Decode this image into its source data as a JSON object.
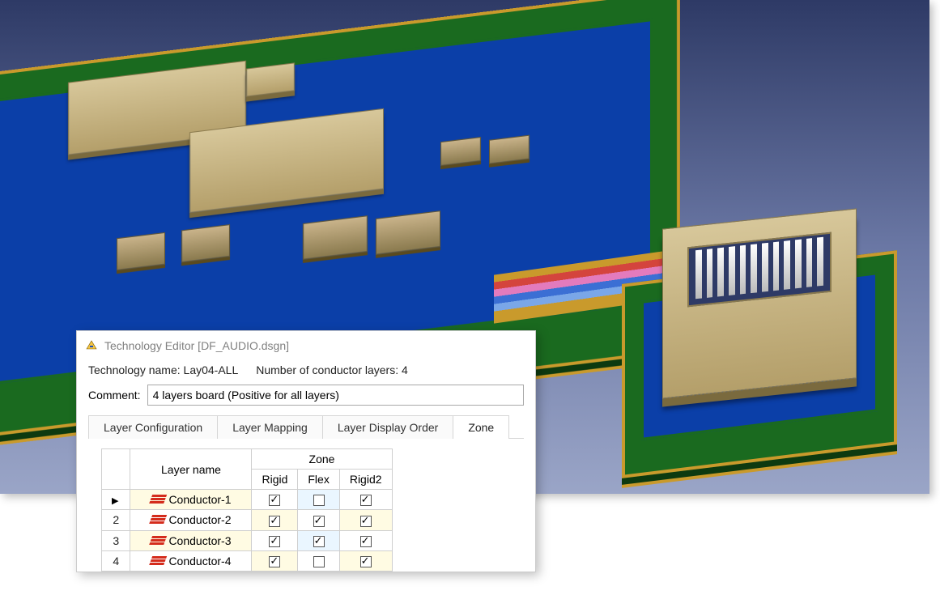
{
  "viewport": {
    "type": "3d-pcb-render",
    "background_gradient": [
      "#2e3a66",
      "#9aa5c7"
    ],
    "pcb_colors": {
      "substrate": "#1a6a1f",
      "outline": "#c99a2c",
      "copper_plane": "#0b3fa8",
      "flex_layers": [
        "#c99a2c",
        "#d4443d",
        "#e37bbd",
        "#3b6fd4",
        "#7aa7e8"
      ]
    },
    "component_color": "#c9b38a"
  },
  "dialog": {
    "title": "Technology Editor [DF_AUDIO.dsgn]",
    "tech_name_label": "Technology name:",
    "tech_name": "Lay04-ALL",
    "layers_label": "Number of conductor layers:",
    "layers_count": "4",
    "comment_label": "Comment:",
    "comment_value": "4 layers board (Positive for all layers)",
    "tabs": [
      {
        "id": "layer-config",
        "label": "Layer Configuration",
        "active": false
      },
      {
        "id": "layer-mapping",
        "label": "Layer Mapping",
        "active": false
      },
      {
        "id": "layer-display",
        "label": "Layer Display Order",
        "active": false
      },
      {
        "id": "zone",
        "label": "Zone",
        "active": true
      }
    ],
    "zone_table": {
      "col_layer": "Layer name",
      "col_group": "Zone",
      "zones": [
        "Rigid",
        "Flex",
        "Rigid2"
      ],
      "rows": [
        {
          "n": "",
          "selected": true,
          "name": "Conductor-1",
          "rigid": true,
          "flex": false,
          "rigid2": true
        },
        {
          "n": "2",
          "selected": false,
          "name": "Conductor-2",
          "rigid": true,
          "flex": true,
          "rigid2": true
        },
        {
          "n": "3",
          "selected": false,
          "name": "Conductor-3",
          "rigid": true,
          "flex": true,
          "rigid2": true
        },
        {
          "n": "4",
          "selected": false,
          "name": "Conductor-4",
          "rigid": true,
          "flex": false,
          "rigid2": true
        }
      ],
      "row_alt_bg": "#fffbe3",
      "flex_alt_bg": "#eaf6ff"
    }
  }
}
